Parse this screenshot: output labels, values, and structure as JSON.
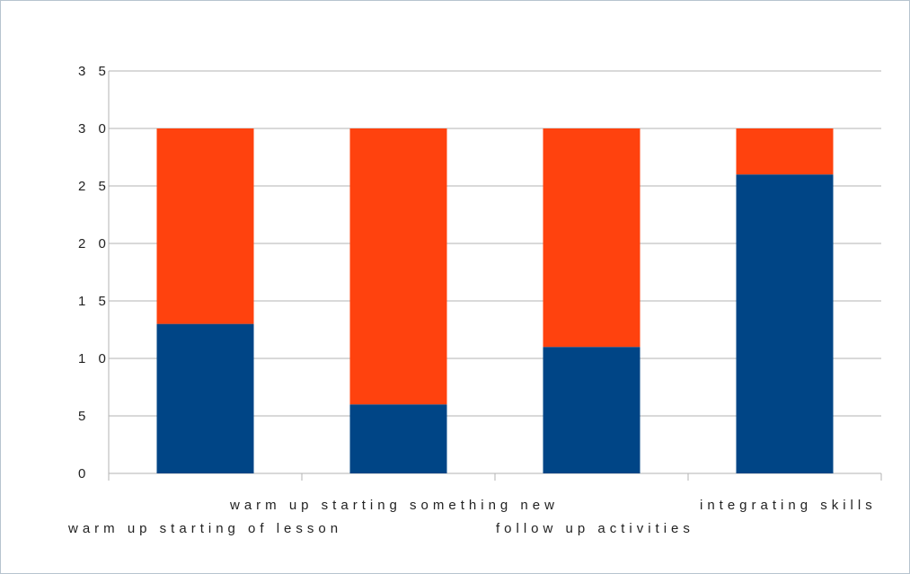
{
  "chart_data": {
    "type": "bar",
    "stacked": true,
    "categories": [
      "warm up starting of lesson",
      "warm up starting something new",
      "follow up activities",
      "integrating skills"
    ],
    "series": [
      {
        "values": [
          13,
          6,
          11,
          26
        ],
        "color": "#004586"
      },
      {
        "values": [
          17,
          24,
          19,
          4
        ],
        "color": "#ff420e"
      }
    ],
    "ylim": [
      0,
      35
    ],
    "yticks": [
      "0",
      "5",
      "10",
      "15",
      "20",
      "25",
      "30",
      "35"
    ],
    "ytick_labels": [
      "0",
      "5",
      "1 0",
      "1 5",
      "2 0",
      "2 5",
      "3 0",
      "3 5"
    ],
    "grid": true,
    "legend": "none",
    "title": "",
    "xlabel": "",
    "ylabel": ""
  }
}
